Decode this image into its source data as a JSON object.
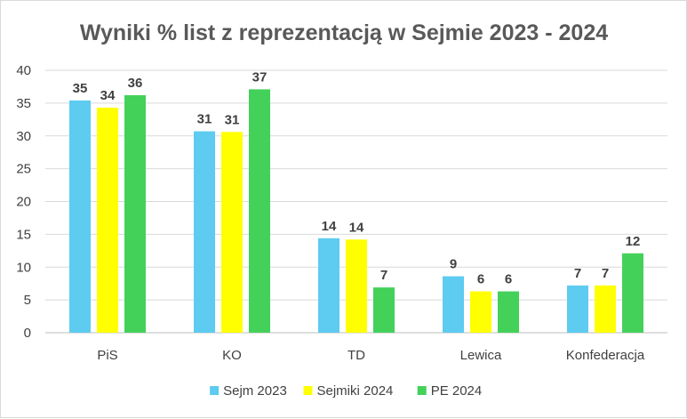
{
  "chart_data": {
    "type": "bar",
    "title": "Wyniki % list z reprezentacją w Sejmie 2023 - 2024",
    "categories": [
      "PiS",
      "KO",
      "TD",
      "Lewica",
      "Konfederacja"
    ],
    "series": [
      {
        "name": "Sejm 2023",
        "color": "#5ecbf0",
        "values": [
          35.4,
          30.7,
          14.4,
          8.6,
          7.2
        ],
        "labels": [
          "35",
          "31",
          "14",
          "9",
          "7"
        ]
      },
      {
        "name": "Sejmiki 2024",
        "color": "#ffff00",
        "values": [
          34.3,
          30.6,
          14.2,
          6.3,
          7.2
        ],
        "labels": [
          "34",
          "31",
          "14",
          "6",
          "7"
        ]
      },
      {
        "name": "PE 2024",
        "color": "#43d15a",
        "values": [
          36.2,
          37.1,
          6.9,
          6.3,
          12.1
        ],
        "labels": [
          "36",
          "37",
          "7",
          "6",
          "12"
        ]
      }
    ],
    "yticks": [
      "0",
      "5",
      "10",
      "15",
      "20",
      "25",
      "30",
      "35",
      "40"
    ],
    "ylim": [
      0,
      40
    ],
    "grid": true,
    "legend_position": "bottom"
  }
}
